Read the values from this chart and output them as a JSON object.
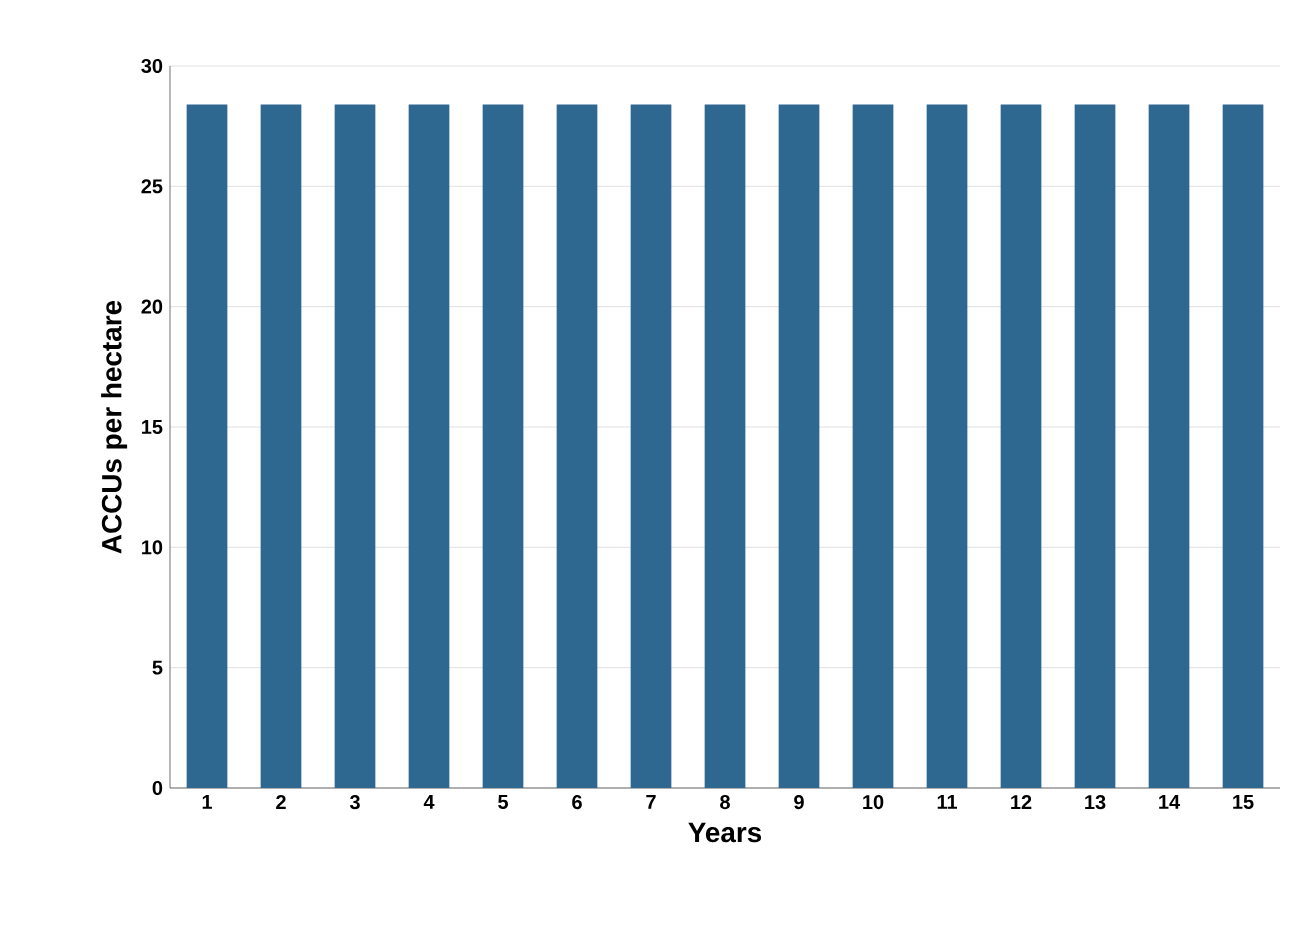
{
  "chart_data": {
    "type": "bar",
    "xlabel": "Years",
    "ylabel": "ACCUs per hectare",
    "categories": [
      "1",
      "2",
      "3",
      "4",
      "5",
      "6",
      "7",
      "8",
      "9",
      "10",
      "11",
      "12",
      "13",
      "14",
      "15"
    ],
    "values": [
      28.4,
      28.4,
      28.4,
      28.4,
      28.4,
      28.4,
      28.4,
      28.4,
      28.4,
      28.4,
      28.4,
      28.4,
      28.4,
      28.4,
      28.4
    ],
    "color": "#2e6891",
    "ylim": [
      0,
      30
    ],
    "yticks": [
      0,
      5,
      10,
      15,
      20,
      25,
      30
    ],
    "grid": "y"
  }
}
